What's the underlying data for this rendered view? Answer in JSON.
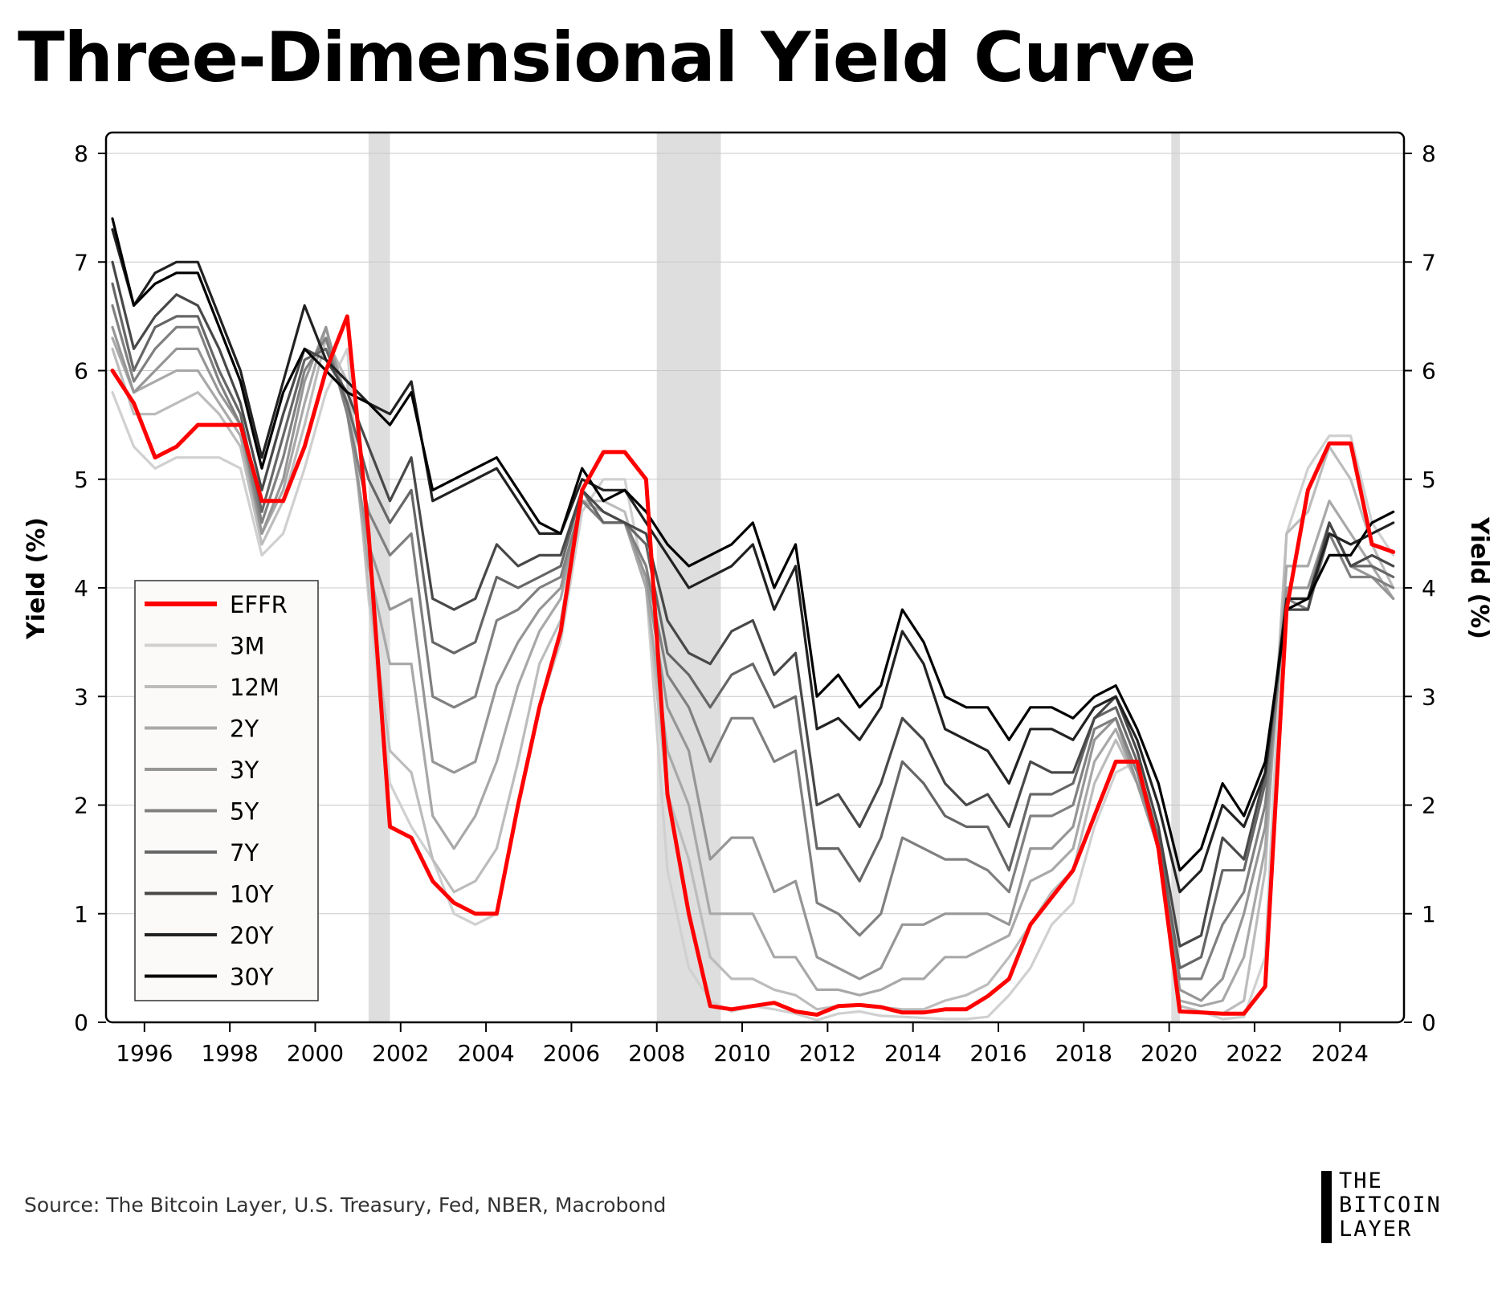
{
  "title": "Three-Dimensional Yield Curve",
  "source": "Source: The Bitcoin Layer, U.S. Treasury, Fed, NBER, Macrobond",
  "logo": {
    "line1": "THE",
    "line2": "BITCOIN",
    "line3": "LAYER"
  },
  "chart_data": {
    "type": "line",
    "title": "Three-Dimensional Yield Curve",
    "ylabel_left": "Yield (%)",
    "ylabel_right": "Yield (%)",
    "xlim": [
      1995.1,
      2025.5
    ],
    "ylim": [
      0,
      8
    ],
    "grid": true,
    "legend_position": "left-middle",
    "x_ticks": [
      1996,
      1998,
      2000,
      2002,
      2004,
      2006,
      2008,
      2010,
      2012,
      2014,
      2016,
      2018,
      2020,
      2022,
      2024
    ],
    "y_ticks": [
      0,
      1,
      2,
      3,
      4,
      5,
      6,
      7,
      8
    ],
    "recessions": [
      [
        2001.25,
        2001.75
      ],
      [
        2008.0,
        2009.5
      ],
      [
        2020.05,
        2020.25
      ]
    ],
    "x": [
      1995.25,
      1995.75,
      1996.25,
      1996.75,
      1997.25,
      1997.75,
      1998.25,
      1998.75,
      1999.25,
      1999.75,
      2000.25,
      2000.75,
      2001.25,
      2001.75,
      2002.25,
      2002.75,
      2003.25,
      2003.75,
      2004.25,
      2004.75,
      2005.25,
      2005.75,
      2006.25,
      2006.75,
      2007.25,
      2007.75,
      2008.25,
      2008.75,
      2009.25,
      2009.75,
      2010.25,
      2010.75,
      2011.25,
      2011.75,
      2012.25,
      2012.75,
      2013.25,
      2013.75,
      2014.25,
      2014.75,
      2015.25,
      2015.75,
      2016.25,
      2016.75,
      2017.25,
      2017.75,
      2018.25,
      2018.75,
      2019.25,
      2019.75,
      2020.25,
      2020.75,
      2021.25,
      2021.75,
      2022.25,
      2022.75,
      2023.25,
      2023.75,
      2024.25,
      2024.75,
      2025.25
    ],
    "series": [
      {
        "name": "30Y",
        "color": "#000000",
        "values": [
          7.4,
          6.6,
          6.8,
          6.9,
          6.9,
          6.4,
          5.9,
          5.1,
          5.8,
          6.2,
          6.0,
          5.8,
          5.7,
          5.5,
          5.8,
          4.9,
          5.0,
          5.1,
          5.2,
          4.9,
          4.6,
          4.5,
          5.1,
          4.8,
          4.9,
          4.7,
          4.4,
          4.2,
          4.3,
          4.4,
          4.6,
          4.0,
          4.4,
          3.0,
          3.2,
          2.9,
          3.1,
          3.8,
          3.5,
          3.0,
          2.9,
          2.9,
          2.6,
          2.9,
          2.9,
          2.8,
          3.0,
          3.1,
          2.7,
          2.2,
          1.4,
          1.6,
          2.2,
          1.9,
          2.4,
          3.8,
          3.9,
          4.3,
          4.3,
          4.6,
          4.7
        ]
      },
      {
        "name": "20Y",
        "color": "#222222",
        "values": [
          7.3,
          6.6,
          6.9,
          7.0,
          7.0,
          6.5,
          6.0,
          5.2,
          5.9,
          6.6,
          6.1,
          5.9,
          5.7,
          5.6,
          5.9,
          4.8,
          4.9,
          5.0,
          5.1,
          4.8,
          4.5,
          4.5,
          5.0,
          4.9,
          4.9,
          4.6,
          4.3,
          4.0,
          4.1,
          4.2,
          4.4,
          3.8,
          4.2,
          2.7,
          2.8,
          2.6,
          2.9,
          3.6,
          3.3,
          2.7,
          2.6,
          2.5,
          2.2,
          2.7,
          2.7,
          2.6,
          2.9,
          3.0,
          2.6,
          2.0,
          1.2,
          1.4,
          2.0,
          1.8,
          2.3,
          3.9,
          3.9,
          4.5,
          4.4,
          4.5,
          4.6
        ]
      },
      {
        "name": "10Y",
        "color": "#484848",
        "values": [
          7.0,
          6.2,
          6.5,
          6.7,
          6.6,
          6.2,
          5.7,
          4.9,
          5.6,
          6.2,
          6.1,
          5.8,
          5.3,
          4.8,
          5.2,
          3.9,
          3.8,
          3.9,
          4.4,
          4.2,
          4.3,
          4.3,
          4.9,
          4.7,
          4.6,
          4.5,
          3.7,
          3.4,
          3.3,
          3.6,
          3.7,
          3.2,
          3.4,
          2.0,
          2.1,
          1.8,
          2.2,
          2.8,
          2.6,
          2.2,
          2.0,
          2.1,
          1.8,
          2.4,
          2.3,
          2.3,
          2.8,
          3.0,
          2.5,
          1.8,
          0.7,
          0.8,
          1.7,
          1.5,
          2.3,
          3.8,
          3.8,
          4.6,
          4.2,
          4.3,
          4.2
        ]
      },
      {
        "name": "7Y",
        "color": "#666666",
        "values": [
          6.8,
          6.0,
          6.4,
          6.5,
          6.5,
          6.0,
          5.6,
          4.7,
          5.4,
          6.1,
          6.2,
          5.7,
          5.0,
          4.6,
          4.9,
          3.5,
          3.4,
          3.5,
          4.1,
          4.0,
          4.1,
          4.2,
          4.9,
          4.6,
          4.6,
          4.4,
          3.4,
          3.2,
          2.9,
          3.2,
          3.3,
          2.9,
          3.0,
          1.6,
          1.6,
          1.3,
          1.7,
          2.4,
          2.2,
          1.9,
          1.8,
          1.8,
          1.4,
          2.1,
          2.1,
          2.2,
          2.8,
          2.9,
          2.4,
          1.7,
          0.5,
          0.6,
          1.4,
          1.4,
          2.2,
          3.9,
          3.9,
          4.6,
          4.2,
          4.2,
          4.1
        ]
      },
      {
        "name": "5Y",
        "color": "#808080",
        "values": [
          6.6,
          5.9,
          6.2,
          6.4,
          6.4,
          5.9,
          5.5,
          4.6,
          5.2,
          6.0,
          6.3,
          5.6,
          4.7,
          4.3,
          4.5,
          3.0,
          2.9,
          3.0,
          3.7,
          3.8,
          4.0,
          4.1,
          4.8,
          4.6,
          4.6,
          4.2,
          3.2,
          2.9,
          2.4,
          2.8,
          2.8,
          2.4,
          2.5,
          1.1,
          1.0,
          0.8,
          1.0,
          1.7,
          1.6,
          1.5,
          1.5,
          1.4,
          1.2,
          1.9,
          1.9,
          2.0,
          2.7,
          2.8,
          2.3,
          1.6,
          0.4,
          0.4,
          0.9,
          1.2,
          2.0,
          3.9,
          3.8,
          4.5,
          4.1,
          4.1,
          4.0
        ]
      },
      {
        "name": "3Y",
        "color": "#969696",
        "values": [
          6.4,
          5.8,
          6.0,
          6.2,
          6.2,
          5.8,
          5.5,
          4.5,
          5.0,
          5.9,
          6.4,
          5.6,
          4.4,
          3.8,
          3.9,
          2.4,
          2.3,
          2.4,
          3.1,
          3.5,
          3.8,
          4.0,
          4.8,
          4.6,
          4.6,
          4.1,
          2.9,
          2.5,
          1.5,
          1.7,
          1.7,
          1.2,
          1.3,
          0.6,
          0.5,
          0.4,
          0.5,
          0.9,
          0.9,
          1.0,
          1.0,
          1.0,
          0.9,
          1.6,
          1.6,
          1.8,
          2.6,
          2.8,
          2.2,
          1.6,
          0.3,
          0.2,
          0.4,
          1.0,
          1.8,
          4.0,
          4.0,
          4.6,
          4.2,
          4.1,
          3.9
        ]
      },
      {
        "name": "2Y",
        "color": "#a8a8a8",
        "values": [
          6.3,
          5.8,
          5.9,
          6.0,
          6.0,
          5.7,
          5.4,
          4.5,
          4.9,
          5.7,
          6.4,
          5.7,
          4.2,
          3.3,
          3.3,
          1.9,
          1.6,
          1.9,
          2.4,
          3.1,
          3.6,
          3.9,
          4.8,
          4.7,
          4.6,
          4.0,
          2.5,
          2.0,
          1.0,
          1.0,
          1.0,
          0.6,
          0.6,
          0.3,
          0.3,
          0.25,
          0.3,
          0.4,
          0.4,
          0.6,
          0.6,
          0.7,
          0.8,
          1.3,
          1.4,
          1.6,
          2.4,
          2.7,
          2.2,
          1.6,
          0.2,
          0.15,
          0.2,
          0.6,
          1.6,
          4.2,
          4.2,
          4.8,
          4.5,
          4.2,
          3.9
        ]
      },
      {
        "name": "12M",
        "color": "#bcbcbc",
        "values": [
          6.2,
          5.6,
          5.6,
          5.7,
          5.8,
          5.6,
          5.3,
          4.4,
          4.8,
          5.5,
          6.3,
          5.9,
          4.0,
          2.5,
          2.3,
          1.5,
          1.2,
          1.3,
          1.6,
          2.4,
          3.3,
          3.7,
          4.8,
          4.8,
          4.7,
          4.0,
          2.1,
          1.5,
          0.6,
          0.4,
          0.4,
          0.3,
          0.25,
          0.12,
          0.15,
          0.16,
          0.14,
          0.12,
          0.12,
          0.2,
          0.25,
          0.35,
          0.6,
          0.9,
          1.2,
          1.4,
          2.2,
          2.6,
          2.2,
          1.6,
          0.15,
          0.1,
          0.08,
          0.2,
          1.4,
          4.5,
          4.7,
          5.3,
          5.0,
          4.4,
          4.0
        ]
      },
      {
        "name": "3M",
        "color": "#d0d0d0",
        "values": [
          5.8,
          5.3,
          5.1,
          5.2,
          5.2,
          5.2,
          5.1,
          4.3,
          4.5,
          5.1,
          5.8,
          6.2,
          3.9,
          2.2,
          1.8,
          1.5,
          1.0,
          0.9,
          1.0,
          2.0,
          2.9,
          3.5,
          4.7,
          5.0,
          5.0,
          4.0,
          1.4,
          0.5,
          0.2,
          0.1,
          0.15,
          0.12,
          0.08,
          0.02,
          0.08,
          0.1,
          0.06,
          0.05,
          0.04,
          0.03,
          0.03,
          0.05,
          0.25,
          0.5,
          0.9,
          1.1,
          1.8,
          2.3,
          2.4,
          1.6,
          0.1,
          0.1,
          0.03,
          0.05,
          0.6,
          4.5,
          5.1,
          5.4,
          5.4,
          4.6,
          4.3
        ]
      },
      {
        "name": "EFFR",
        "color": "#ff0000",
        "values": [
          6.0,
          5.7,
          5.2,
          5.3,
          5.5,
          5.5,
          5.5,
          4.8,
          4.8,
          5.3,
          6.0,
          6.5,
          4.5,
          1.8,
          1.7,
          1.3,
          1.1,
          1.0,
          1.0,
          2.0,
          2.9,
          3.6,
          4.9,
          5.25,
          5.25,
          5.0,
          2.1,
          1.0,
          0.15,
          0.12,
          0.15,
          0.18,
          0.1,
          0.07,
          0.15,
          0.16,
          0.14,
          0.09,
          0.09,
          0.12,
          0.12,
          0.24,
          0.4,
          0.9,
          1.15,
          1.4,
          1.9,
          2.4,
          2.4,
          1.6,
          0.1,
          0.09,
          0.08,
          0.08,
          0.33,
          3.8,
          4.9,
          5.33,
          5.33,
          4.4,
          4.33
        ]
      }
    ],
    "legend_order": [
      "EFFR",
      "3M",
      "12M",
      "2Y",
      "3Y",
      "5Y",
      "7Y",
      "10Y",
      "20Y",
      "30Y"
    ]
  }
}
